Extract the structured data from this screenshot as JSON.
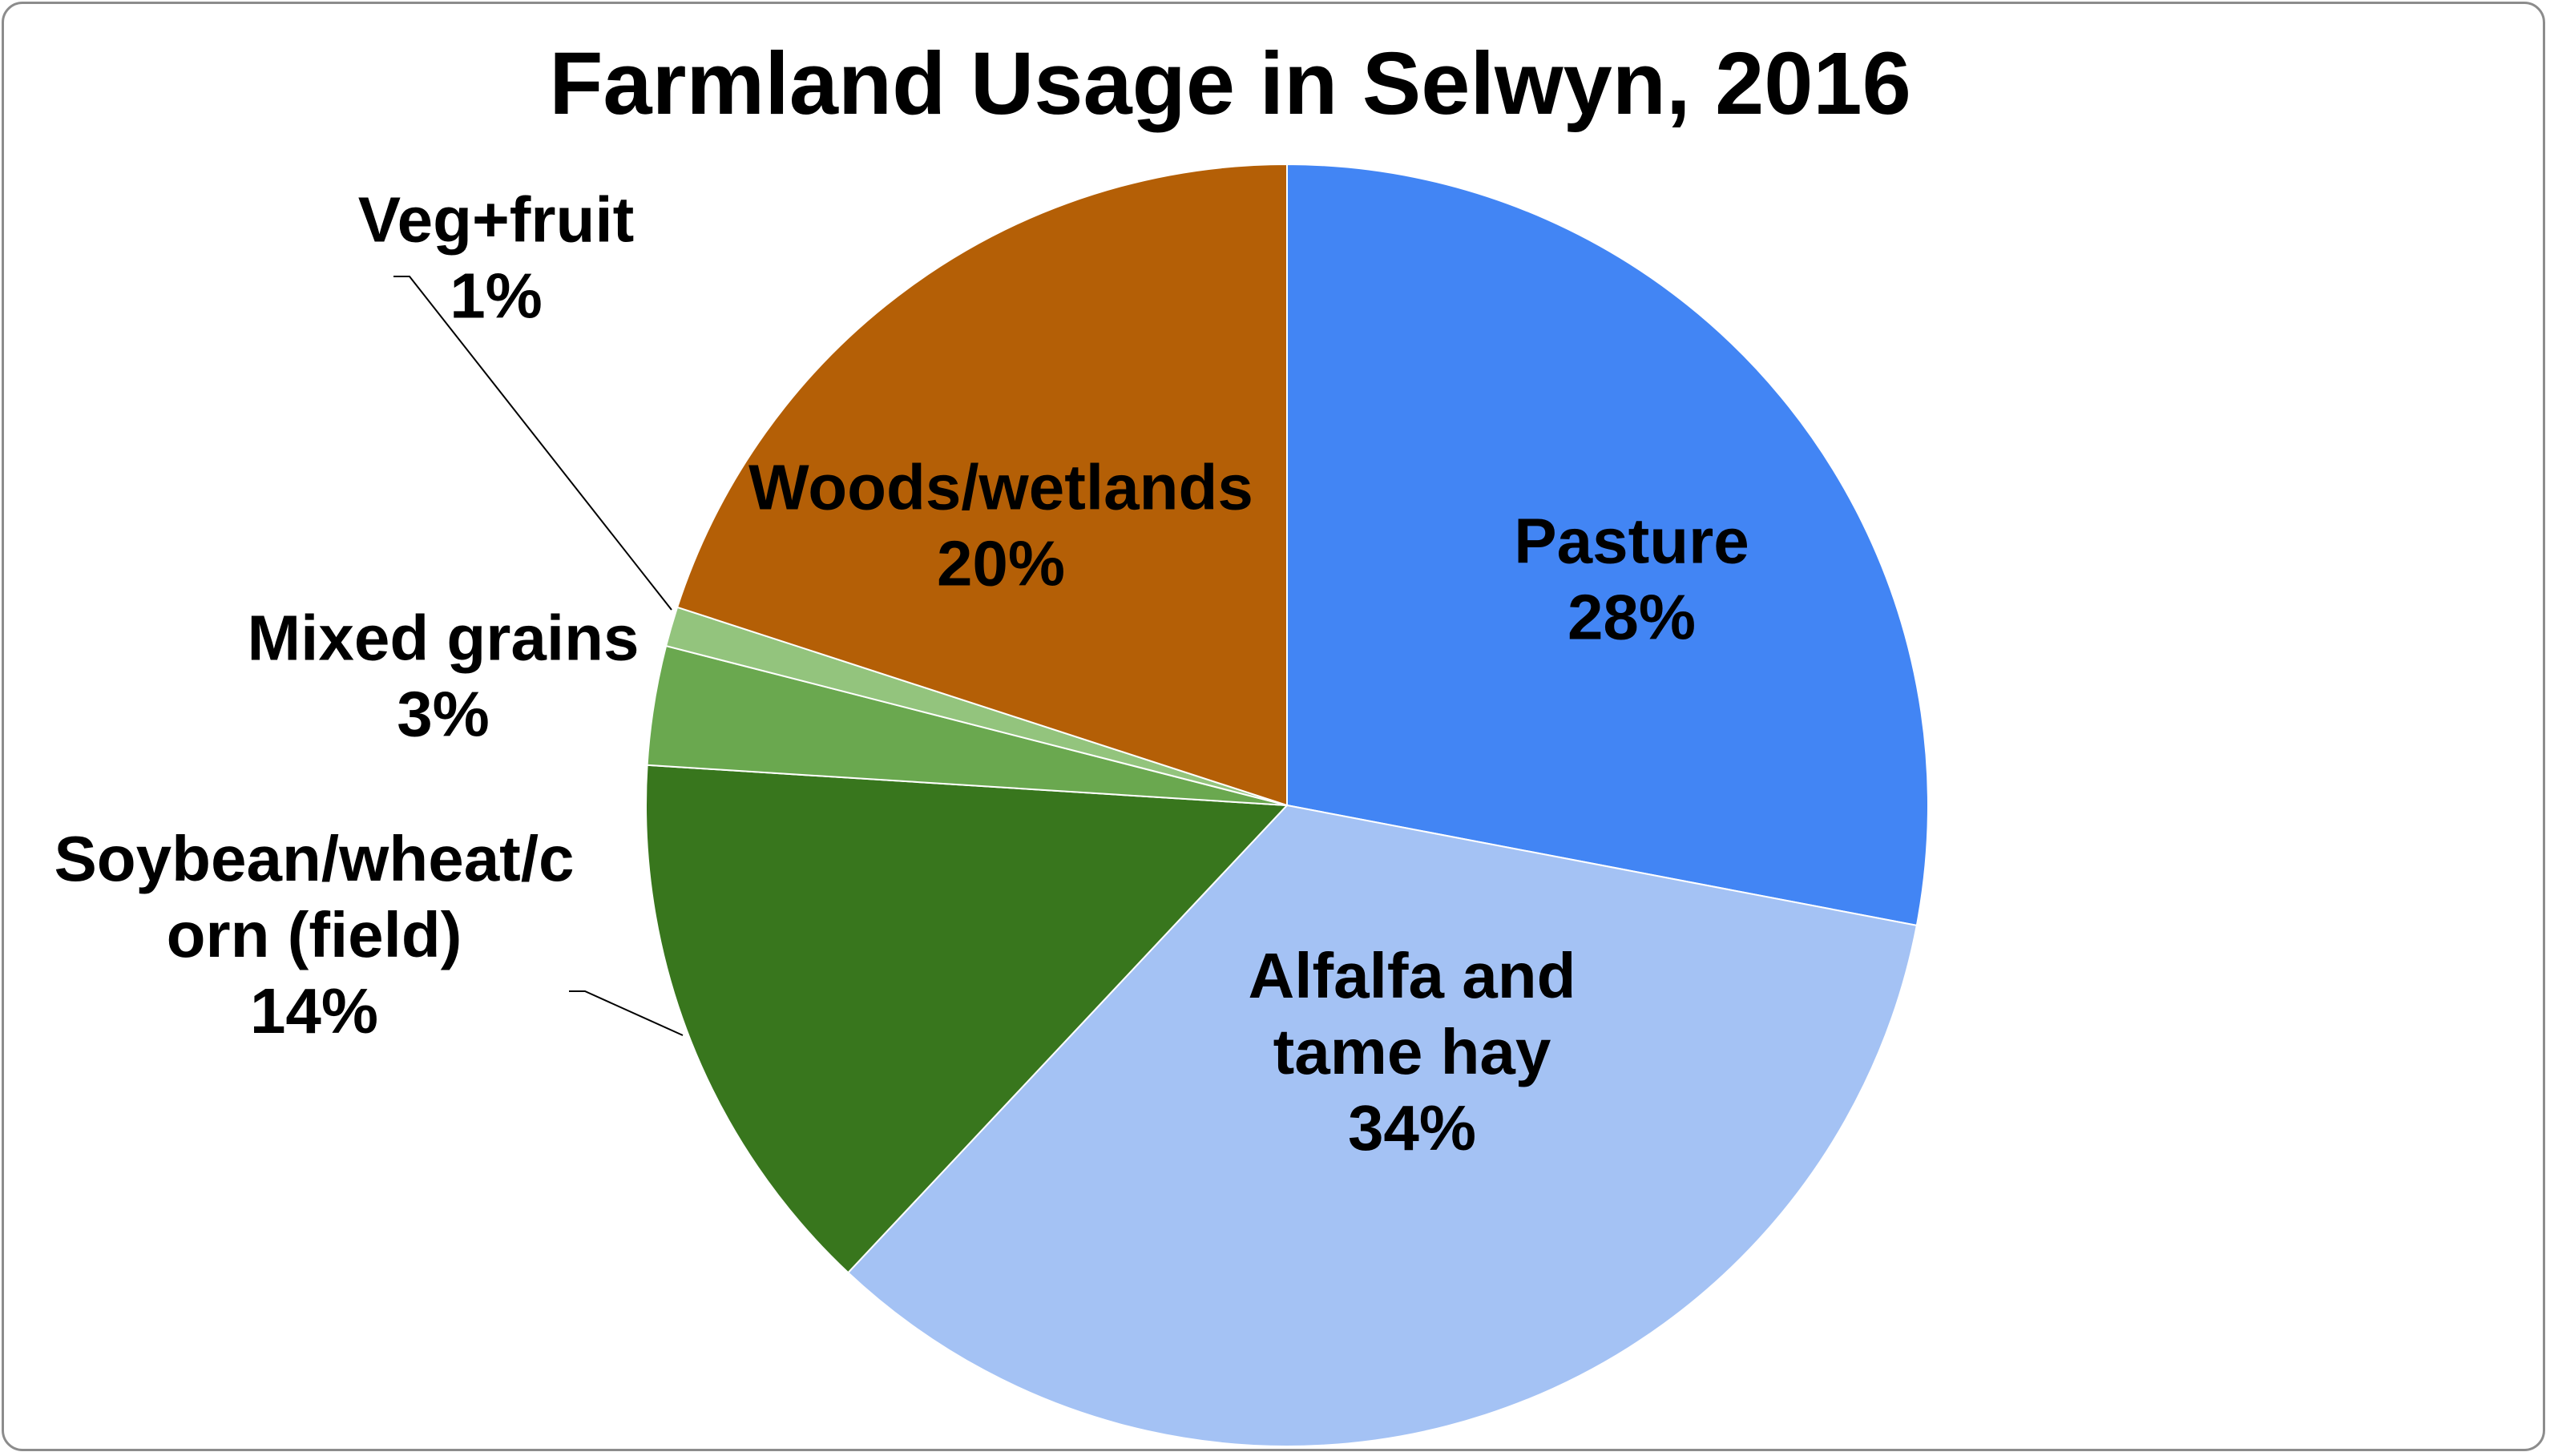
{
  "chart_data": {
    "type": "pie",
    "title": "Farmland Usage in Selwyn, 2016",
    "slices": [
      {
        "label": "Pasture",
        "label_lines": [
          "Pasture"
        ],
        "value": 28,
        "value_label": "28%",
        "color": "#4285f4"
      },
      {
        "label": "Alfalfa and tame hay",
        "label_lines": [
          "Alfalfa and",
          "tame hay"
        ],
        "value": 34,
        "value_label": "34%",
        "color": "#a4c2f4"
      },
      {
        "label": "Soybean/wheat/corn (field)",
        "label_lines": [
          "Soybean/wheat/c",
          "orn (field)"
        ],
        "value": 14,
        "value_label": "14%",
        "color": "#38761d"
      },
      {
        "label": "Mixed grains",
        "label_lines": [
          "Mixed grains"
        ],
        "value": 3,
        "value_label": "3%",
        "color": "#6aa84f"
      },
      {
        "label": "Veg+fruit",
        "label_lines": [
          "Veg+fruit"
        ],
        "value": 1,
        "value_label": "1%",
        "color": "#93c47d"
      },
      {
        "label": "Woods/wetlands",
        "label_lines": [
          "Woods/wetlands"
        ],
        "value": 20,
        "value_label": "20%",
        "color": "#b45f06"
      }
    ],
    "start_angle": "12 o'clock",
    "direction": "clockwise",
    "legend": "none"
  }
}
